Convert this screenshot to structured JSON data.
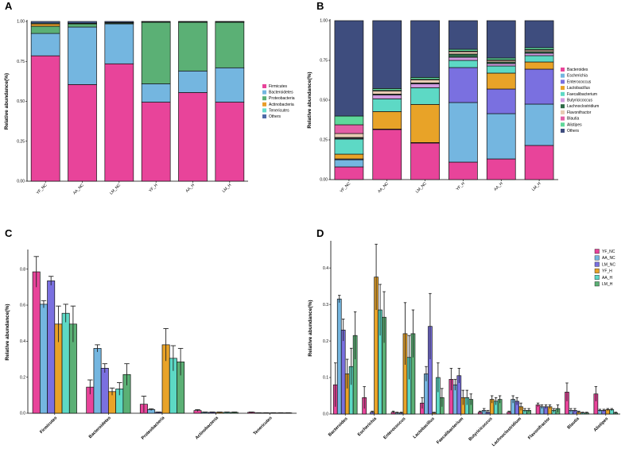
{
  "panels": {
    "A": {
      "letter": "A"
    },
    "B": {
      "letter": "B"
    },
    "C": {
      "letter": "C"
    },
    "D": {
      "letter": "D"
    }
  },
  "chart_data": [
    {
      "id": "A",
      "type": "bar",
      "stacked": true,
      "title": "",
      "xlabel": "",
      "ylabel": "Relative abundance(%)",
      "ylim": [
        0,
        1
      ],
      "yticks": [
        "0.00",
        "0.25",
        "0.50",
        "0.75",
        "1.00"
      ],
      "categories": [
        "YF_NC",
        "AA_NC",
        "LM_NC",
        "YF_H",
        "AA_H",
        "LM_H"
      ],
      "legend_position": "right",
      "series": [
        {
          "name": "Firmicutes",
          "color": "#e8449a",
          "values": [
            0.785,
            0.605,
            0.735,
            0.495,
            0.555,
            0.495
          ]
        },
        {
          "name": "Bacteroidetes",
          "color": "#74b6e0",
          "values": [
            0.14,
            0.36,
            0.25,
            0.115,
            0.135,
            0.215
          ]
        },
        {
          "name": "Proteobacteria",
          "color": "#5bb075",
          "values": [
            0.045,
            0.02,
            0.005,
            0.385,
            0.305,
            0.285
          ]
        },
        {
          "name": "Actinobacteria",
          "color": "#e89d2a",
          "values": [
            0.015,
            0.003,
            0.002,
            0.002,
            0.002,
            0.002
          ]
        },
        {
          "name": "Tenericutes",
          "color": "#66dccb",
          "values": [
            0.005,
            0.002,
            0.002,
            0.002,
            0.002,
            0.002
          ]
        },
        {
          "name": "Others",
          "color": "#4f6aa8",
          "values": [
            0.01,
            0.01,
            0.006,
            0.001,
            0.001,
            0.001
          ]
        }
      ]
    },
    {
      "id": "B",
      "type": "bar",
      "stacked": true,
      "title": "",
      "xlabel": "",
      "ylabel": "Relative abundance(%)",
      "ylim": [
        0,
        1
      ],
      "yticks": [
        "0.00",
        "0.25",
        "0.50",
        "0.75",
        "1.00"
      ],
      "categories": [
        "YF_NC",
        "AA_NC",
        "LM_NC",
        "YF_H",
        "AA_H",
        "LM_H"
      ],
      "legend_position": "right",
      "series": [
        {
          "name": "Bacteroides",
          "color": "#e8449a",
          "values": [
            0.08,
            0.315,
            0.23,
            0.11,
            0.13,
            0.215
          ]
        },
        {
          "name": "Escherichia",
          "color": "#74b6e0",
          "values": [
            0.045,
            0.0,
            0.0,
            0.375,
            0.285,
            0.26
          ]
        },
        {
          "name": "Enterococcus",
          "color": "#7a70e0",
          "values": [
            0.005,
            0.003,
            0.003,
            0.22,
            0.155,
            0.22
          ]
        },
        {
          "name": "Lactobacillus",
          "color": "#e8a328",
          "values": [
            0.03,
            0.11,
            0.24,
            0.0,
            0.1,
            0.045
          ]
        },
        {
          "name": "Faecalibacterium",
          "color": "#5dd9c5",
          "values": [
            0.095,
            0.08,
            0.105,
            0.045,
            0.045,
            0.04
          ]
        },
        {
          "name": "Butyricicoccus",
          "color": "#d09be0",
          "values": [
            0.005,
            0.025,
            0.025,
            0.02,
            0.015,
            0.015
          ]
        },
        {
          "name": "Lachnoclostridium",
          "color": "#2e6a47",
          "values": [
            0.005,
            0.005,
            0.005,
            0.02,
            0.01,
            0.01
          ]
        },
        {
          "name": "Flavonifractor",
          "color": "#e8cbb4",
          "values": [
            0.025,
            0.02,
            0.02,
            0.015,
            0.01,
            0.01
          ]
        },
        {
          "name": "Blautia",
          "color": "#e35fa6",
          "values": [
            0.055,
            0.003,
            0.003,
            0.003,
            0.003,
            0.003
          ]
        },
        {
          "name": "Alistipes",
          "color": "#5fd89b",
          "values": [
            0.055,
            0.012,
            0.012,
            0.012,
            0.012,
            0.012
          ]
        },
        {
          "name": "Others",
          "color": "#3e4d7e",
          "values": [
            0.6,
            0.427,
            0.357,
            0.18,
            0.235,
            0.17
          ]
        }
      ]
    },
    {
      "id": "C",
      "type": "bar",
      "grouped": true,
      "title": "",
      "xlabel": "",
      "ylabel": "Relative abundance(%)",
      "ylim": [
        0,
        0.9
      ],
      "yticks": [
        "0.0",
        "0.2",
        "0.4",
        "0.6",
        "0.8"
      ],
      "categories": [
        "Firmicutes",
        "Bacteroidetes",
        "Proteobacteria",
        "Actinobacteria",
        "Tenericutes"
      ],
      "series": [
        {
          "name": "YF_NC",
          "color": "#e8449a",
          "values": [
            0.785,
            0.145,
            0.05,
            0.015,
            0.005
          ],
          "errors": [
            0.085,
            0.04,
            0.045,
            0.005,
            0.002
          ]
        },
        {
          "name": "AA_NC",
          "color": "#74b6e0",
          "values": [
            0.605,
            0.36,
            0.02,
            0.005,
            0.002
          ],
          "errors": [
            0.02,
            0.02,
            0.005,
            0.002,
            0.001
          ]
        },
        {
          "name": "LM_NC",
          "color": "#7a70e0",
          "values": [
            0.735,
            0.25,
            0.005,
            0.005,
            0.002
          ],
          "errors": [
            0.025,
            0.025,
            0.002,
            0.002,
            0.001
          ]
        },
        {
          "name": "YF_H",
          "color": "#e8a328",
          "values": [
            0.495,
            0.12,
            0.38,
            0.005,
            0.002
          ],
          "errors": [
            0.1,
            0.02,
            0.09,
            0.002,
            0.001
          ]
        },
        {
          "name": "AA_H",
          "color": "#5dd9c5",
          "values": [
            0.555,
            0.135,
            0.305,
            0.005,
            0.002
          ],
          "errors": [
            0.05,
            0.035,
            0.07,
            0.002,
            0.001
          ]
        },
        {
          "name": "LM_H",
          "color": "#5bb075",
          "values": [
            0.495,
            0.215,
            0.285,
            0.005,
            0.002
          ],
          "errors": [
            0.1,
            0.06,
            0.075,
            0.002,
            0.001
          ]
        }
      ]
    },
    {
      "id": "D",
      "type": "bar",
      "grouped": true,
      "title": "",
      "xlabel": "",
      "ylabel": "Relative abundance(%)",
      "ylim": [
        0,
        0.47
      ],
      "yticks": [
        "0.0",
        "0.1",
        "0.2",
        "0.3",
        "0.4"
      ],
      "categories": [
        "Bacteroides",
        "Escherichia",
        "Enterococcus",
        "Lactobacillus",
        "Faecalibacterium",
        "Butyricicoccus",
        "Lachnoclostridium",
        "Flavonifractor",
        "Blautia",
        "Alistipes"
      ],
      "legend_position": "top-right",
      "series": [
        {
          "name": "YF_NC",
          "color": "#e8449a",
          "values": [
            0.08,
            0.045,
            0.005,
            0.03,
            0.095,
            0.005,
            0.005,
            0.025,
            0.06,
            0.055
          ],
          "errors": [
            0.06,
            0.03,
            0.003,
            0.015,
            0.03,
            0.003,
            0.003,
            0.005,
            0.025,
            0.02
          ]
        },
        {
          "name": "AA_NC",
          "color": "#74b6e0",
          "values": [
            0.315,
            0.0,
            0.003,
            0.11,
            0.08,
            0.01,
            0.04,
            0.02,
            0.01,
            0.01
          ],
          "errors": [
            0.01,
            0.0,
            0.002,
            0.02,
            0.015,
            0.005,
            0.01,
            0.005,
            0.005,
            0.003
          ]
        },
        {
          "name": "LM_NC",
          "color": "#7a70e0",
          "values": [
            0.23,
            0.005,
            0.003,
            0.24,
            0.105,
            0.005,
            0.035,
            0.02,
            0.01,
            0.01
          ],
          "errors": [
            0.03,
            0.003,
            0.002,
            0.09,
            0.02,
            0.005,
            0.01,
            0.005,
            0.005,
            0.003
          ]
        },
        {
          "name": "YF_H",
          "color": "#e8a328",
          "values": [
            0.11,
            0.375,
            0.22,
            0.003,
            0.045,
            0.04,
            0.02,
            0.02,
            0.005,
            0.012
          ],
          "errors": [
            0.04,
            0.09,
            0.085,
            0.002,
            0.02,
            0.01,
            0.01,
            0.005,
            0.003,
            0.003
          ]
        },
        {
          "name": "AA_H",
          "color": "#5dd9c5",
          "values": [
            0.13,
            0.285,
            0.155,
            0.1,
            0.045,
            0.035,
            0.01,
            0.01,
            0.003,
            0.012
          ],
          "errors": [
            0.05,
            0.07,
            0.06,
            0.04,
            0.02,
            0.01,
            0.005,
            0.005,
            0.002,
            0.003
          ]
        },
        {
          "name": "LM_H",
          "color": "#5bb075",
          "values": [
            0.215,
            0.265,
            0.22,
            0.045,
            0.04,
            0.04,
            0.01,
            0.015,
            0.003,
            0.003
          ],
          "errors": [
            0.065,
            0.07,
            0.065,
            0.025,
            0.015,
            0.01,
            0.005,
            0.01,
            0.002,
            0.002
          ]
        }
      ]
    }
  ]
}
